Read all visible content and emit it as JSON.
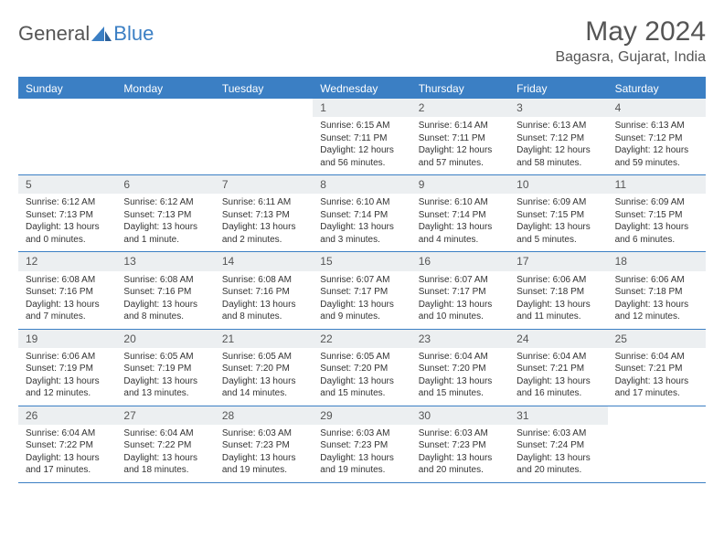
{
  "logo": {
    "text1": "General",
    "text2": "Blue"
  },
  "title": "May 2024",
  "location": "Bagasra, Gujarat, India",
  "colors": {
    "accent": "#3b7fc4",
    "header_text": "#ffffff",
    "daynum_bg": "#eceff1",
    "body_text": "#333333",
    "title_text": "#555555",
    "background": "#ffffff"
  },
  "day_names": [
    "Sunday",
    "Monday",
    "Tuesday",
    "Wednesday",
    "Thursday",
    "Friday",
    "Saturday"
  ],
  "weeks": [
    [
      {
        "empty": true
      },
      {
        "empty": true
      },
      {
        "empty": true
      },
      {
        "day": "1",
        "sunrise": "Sunrise: 6:15 AM",
        "sunset": "Sunset: 7:11 PM",
        "daylight1": "Daylight: 12 hours",
        "daylight2": "and 56 minutes."
      },
      {
        "day": "2",
        "sunrise": "Sunrise: 6:14 AM",
        "sunset": "Sunset: 7:11 PM",
        "daylight1": "Daylight: 12 hours",
        "daylight2": "and 57 minutes."
      },
      {
        "day": "3",
        "sunrise": "Sunrise: 6:13 AM",
        "sunset": "Sunset: 7:12 PM",
        "daylight1": "Daylight: 12 hours",
        "daylight2": "and 58 minutes."
      },
      {
        "day": "4",
        "sunrise": "Sunrise: 6:13 AM",
        "sunset": "Sunset: 7:12 PM",
        "daylight1": "Daylight: 12 hours",
        "daylight2": "and 59 minutes."
      }
    ],
    [
      {
        "day": "5",
        "sunrise": "Sunrise: 6:12 AM",
        "sunset": "Sunset: 7:13 PM",
        "daylight1": "Daylight: 13 hours",
        "daylight2": "and 0 minutes."
      },
      {
        "day": "6",
        "sunrise": "Sunrise: 6:12 AM",
        "sunset": "Sunset: 7:13 PM",
        "daylight1": "Daylight: 13 hours",
        "daylight2": "and 1 minute."
      },
      {
        "day": "7",
        "sunrise": "Sunrise: 6:11 AM",
        "sunset": "Sunset: 7:13 PM",
        "daylight1": "Daylight: 13 hours",
        "daylight2": "and 2 minutes."
      },
      {
        "day": "8",
        "sunrise": "Sunrise: 6:10 AM",
        "sunset": "Sunset: 7:14 PM",
        "daylight1": "Daylight: 13 hours",
        "daylight2": "and 3 minutes."
      },
      {
        "day": "9",
        "sunrise": "Sunrise: 6:10 AM",
        "sunset": "Sunset: 7:14 PM",
        "daylight1": "Daylight: 13 hours",
        "daylight2": "and 4 minutes."
      },
      {
        "day": "10",
        "sunrise": "Sunrise: 6:09 AM",
        "sunset": "Sunset: 7:15 PM",
        "daylight1": "Daylight: 13 hours",
        "daylight2": "and 5 minutes."
      },
      {
        "day": "11",
        "sunrise": "Sunrise: 6:09 AM",
        "sunset": "Sunset: 7:15 PM",
        "daylight1": "Daylight: 13 hours",
        "daylight2": "and 6 minutes."
      }
    ],
    [
      {
        "day": "12",
        "sunrise": "Sunrise: 6:08 AM",
        "sunset": "Sunset: 7:16 PM",
        "daylight1": "Daylight: 13 hours",
        "daylight2": "and 7 minutes."
      },
      {
        "day": "13",
        "sunrise": "Sunrise: 6:08 AM",
        "sunset": "Sunset: 7:16 PM",
        "daylight1": "Daylight: 13 hours",
        "daylight2": "and 8 minutes."
      },
      {
        "day": "14",
        "sunrise": "Sunrise: 6:08 AM",
        "sunset": "Sunset: 7:16 PM",
        "daylight1": "Daylight: 13 hours",
        "daylight2": "and 8 minutes."
      },
      {
        "day": "15",
        "sunrise": "Sunrise: 6:07 AM",
        "sunset": "Sunset: 7:17 PM",
        "daylight1": "Daylight: 13 hours",
        "daylight2": "and 9 minutes."
      },
      {
        "day": "16",
        "sunrise": "Sunrise: 6:07 AM",
        "sunset": "Sunset: 7:17 PM",
        "daylight1": "Daylight: 13 hours",
        "daylight2": "and 10 minutes."
      },
      {
        "day": "17",
        "sunrise": "Sunrise: 6:06 AM",
        "sunset": "Sunset: 7:18 PM",
        "daylight1": "Daylight: 13 hours",
        "daylight2": "and 11 minutes."
      },
      {
        "day": "18",
        "sunrise": "Sunrise: 6:06 AM",
        "sunset": "Sunset: 7:18 PM",
        "daylight1": "Daylight: 13 hours",
        "daylight2": "and 12 minutes."
      }
    ],
    [
      {
        "day": "19",
        "sunrise": "Sunrise: 6:06 AM",
        "sunset": "Sunset: 7:19 PM",
        "daylight1": "Daylight: 13 hours",
        "daylight2": "and 12 minutes."
      },
      {
        "day": "20",
        "sunrise": "Sunrise: 6:05 AM",
        "sunset": "Sunset: 7:19 PM",
        "daylight1": "Daylight: 13 hours",
        "daylight2": "and 13 minutes."
      },
      {
        "day": "21",
        "sunrise": "Sunrise: 6:05 AM",
        "sunset": "Sunset: 7:20 PM",
        "daylight1": "Daylight: 13 hours",
        "daylight2": "and 14 minutes."
      },
      {
        "day": "22",
        "sunrise": "Sunrise: 6:05 AM",
        "sunset": "Sunset: 7:20 PM",
        "daylight1": "Daylight: 13 hours",
        "daylight2": "and 15 minutes."
      },
      {
        "day": "23",
        "sunrise": "Sunrise: 6:04 AM",
        "sunset": "Sunset: 7:20 PM",
        "daylight1": "Daylight: 13 hours",
        "daylight2": "and 15 minutes."
      },
      {
        "day": "24",
        "sunrise": "Sunrise: 6:04 AM",
        "sunset": "Sunset: 7:21 PM",
        "daylight1": "Daylight: 13 hours",
        "daylight2": "and 16 minutes."
      },
      {
        "day": "25",
        "sunrise": "Sunrise: 6:04 AM",
        "sunset": "Sunset: 7:21 PM",
        "daylight1": "Daylight: 13 hours",
        "daylight2": "and 17 minutes."
      }
    ],
    [
      {
        "day": "26",
        "sunrise": "Sunrise: 6:04 AM",
        "sunset": "Sunset: 7:22 PM",
        "daylight1": "Daylight: 13 hours",
        "daylight2": "and 17 minutes."
      },
      {
        "day": "27",
        "sunrise": "Sunrise: 6:04 AM",
        "sunset": "Sunset: 7:22 PM",
        "daylight1": "Daylight: 13 hours",
        "daylight2": "and 18 minutes."
      },
      {
        "day": "28",
        "sunrise": "Sunrise: 6:03 AM",
        "sunset": "Sunset: 7:23 PM",
        "daylight1": "Daylight: 13 hours",
        "daylight2": "and 19 minutes."
      },
      {
        "day": "29",
        "sunrise": "Sunrise: 6:03 AM",
        "sunset": "Sunset: 7:23 PM",
        "daylight1": "Daylight: 13 hours",
        "daylight2": "and 19 minutes."
      },
      {
        "day": "30",
        "sunrise": "Sunrise: 6:03 AM",
        "sunset": "Sunset: 7:23 PM",
        "daylight1": "Daylight: 13 hours",
        "daylight2": "and 20 minutes."
      },
      {
        "day": "31",
        "sunrise": "Sunrise: 6:03 AM",
        "sunset": "Sunset: 7:24 PM",
        "daylight1": "Daylight: 13 hours",
        "daylight2": "and 20 minutes."
      },
      {
        "empty": true
      }
    ]
  ]
}
